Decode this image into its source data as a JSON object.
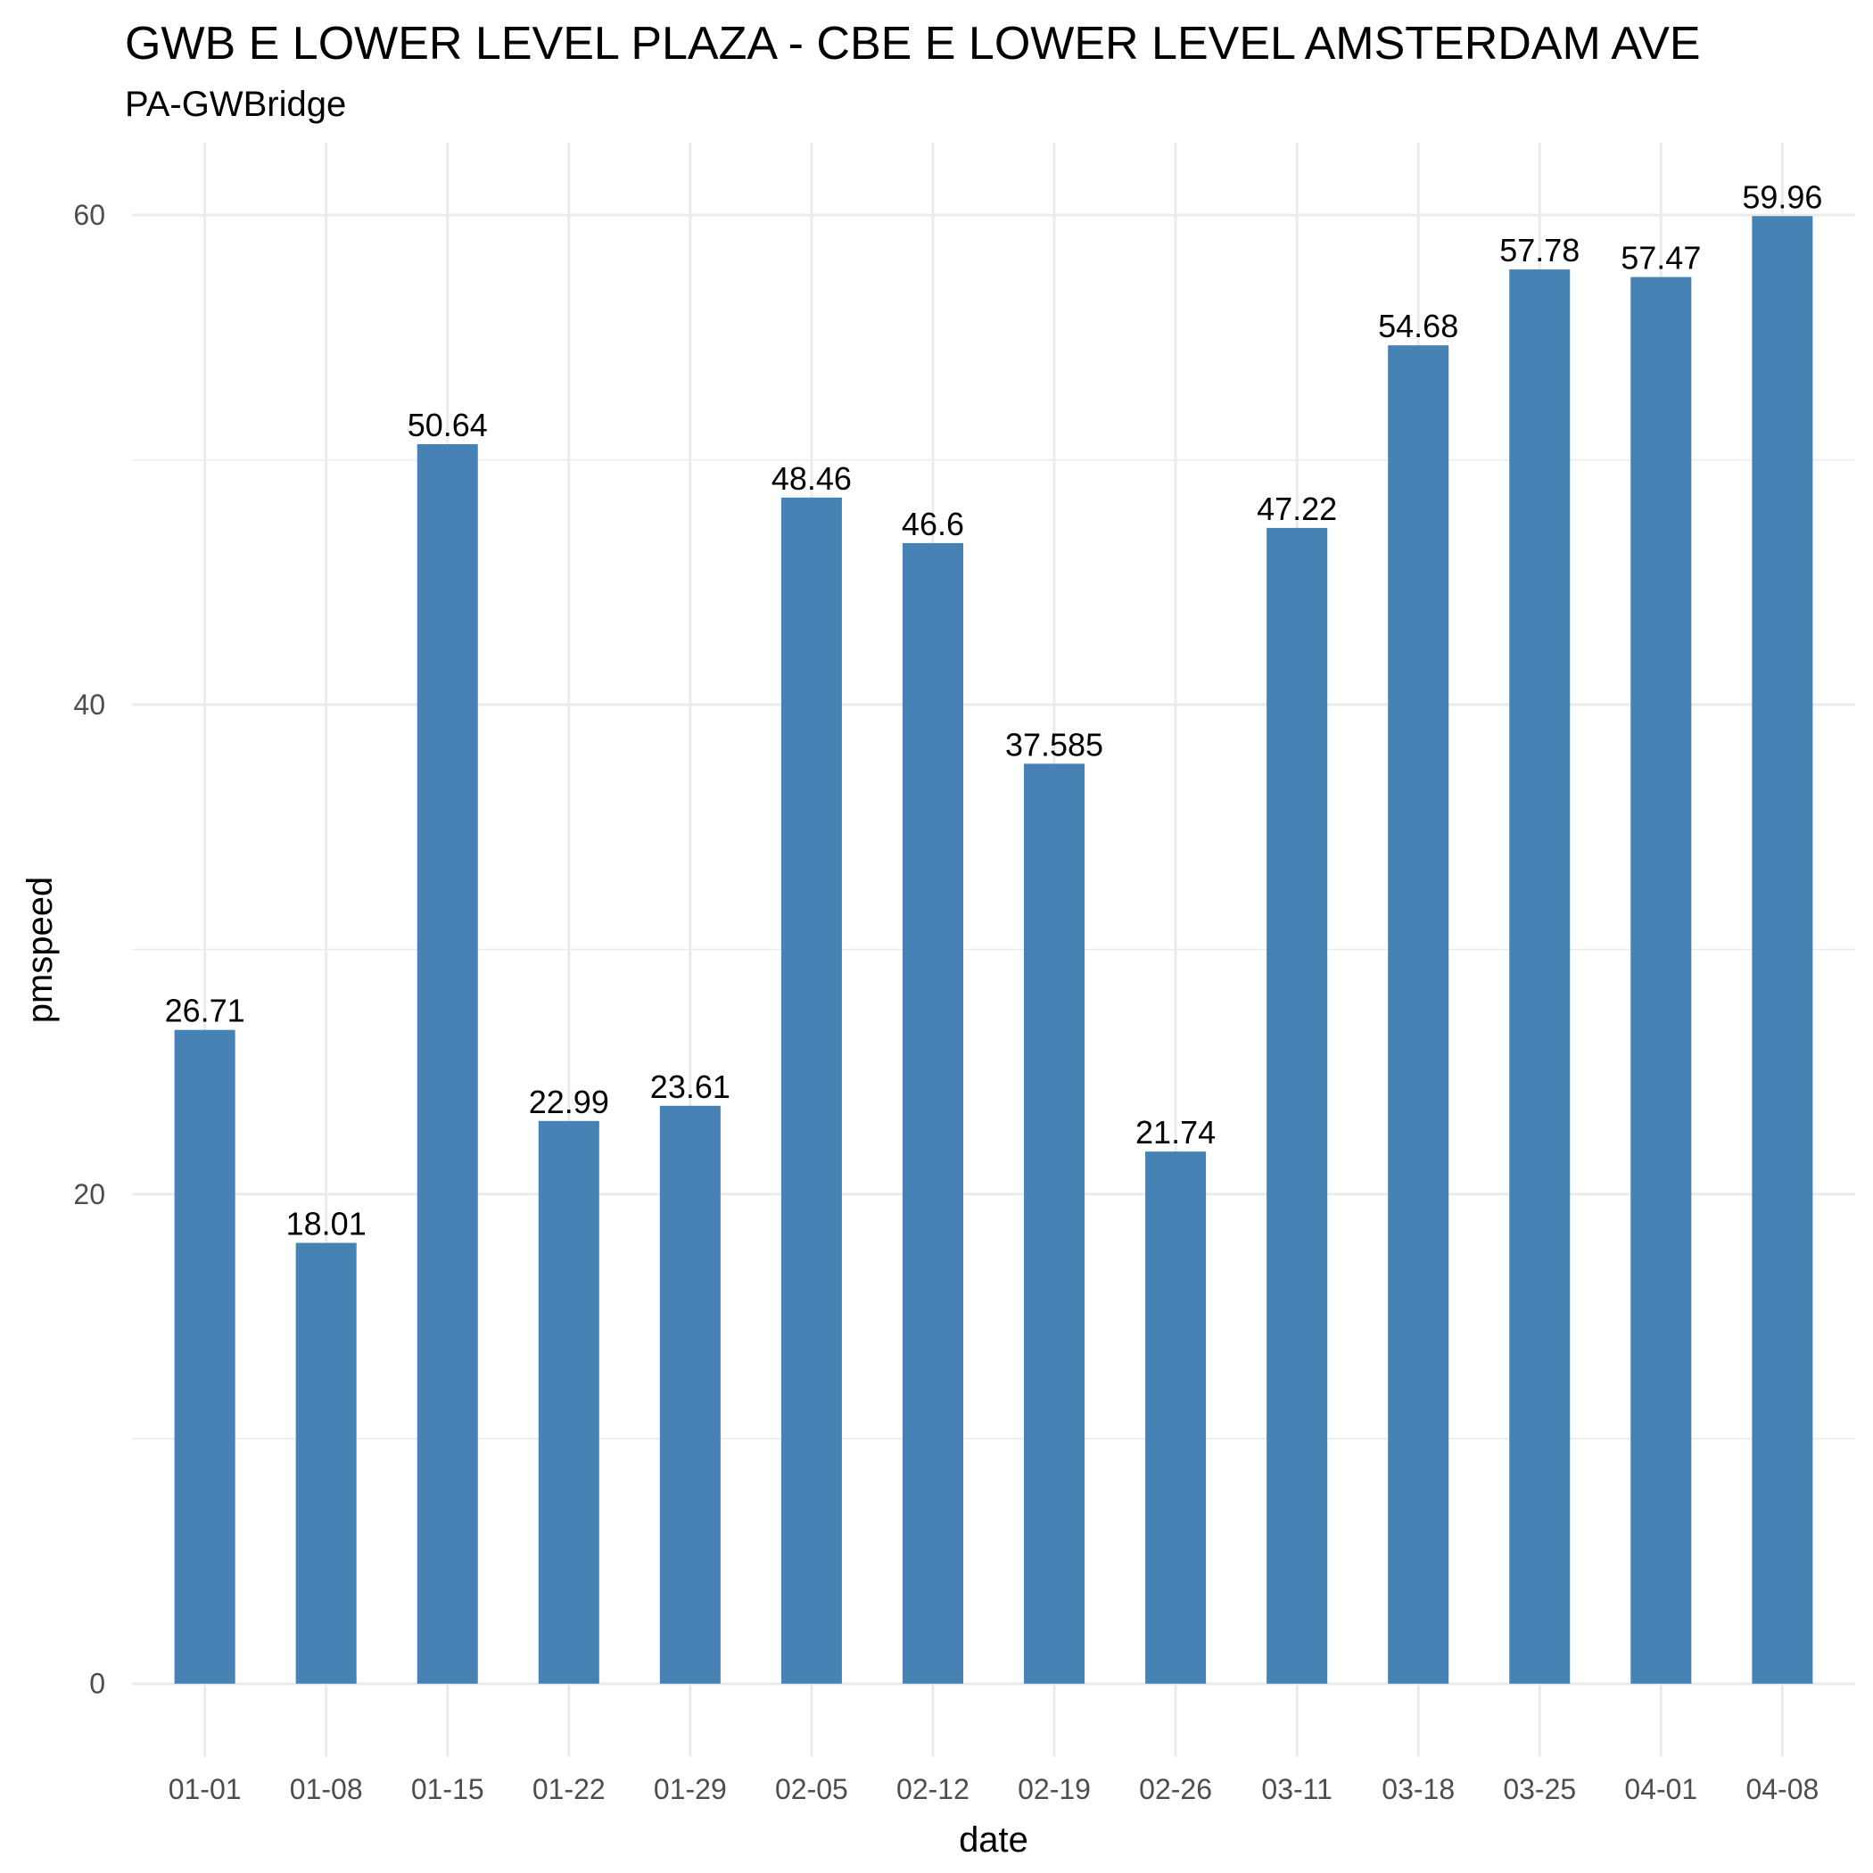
{
  "chart_data": {
    "type": "bar",
    "title": "GWB E LOWER LEVEL PLAZA - CBE E LOWER LEVEL AMSTERDAM AVE",
    "subtitle": "PA-GWBridge",
    "xlabel": "date",
    "ylabel": "pmspeed",
    "categories": [
      "01-01",
      "01-08",
      "01-15",
      "01-22",
      "01-29",
      "02-05",
      "02-12",
      "02-19",
      "02-26",
      "03-11",
      "03-18",
      "03-25",
      "04-01",
      "04-08"
    ],
    "values": [
      26.71,
      18.01,
      50.64,
      22.99,
      23.61,
      48.46,
      46.6,
      37.585,
      21.74,
      47.22,
      54.68,
      57.78,
      57.47,
      59.96
    ],
    "value_labels": [
      "26.71",
      "18.01",
      "50.64",
      "22.99",
      "23.61",
      "48.46",
      "46.6",
      "37.585",
      "21.74",
      "47.22",
      "54.68",
      "57.78",
      "57.47",
      "59.96"
    ],
    "ylim": [
      -2.998,
      62.958
    ],
    "yticks": [
      0,
      20,
      40,
      60
    ],
    "yticks_minor": [
      10,
      30,
      50
    ],
    "grid": true,
    "legend": "none",
    "bar_color": "#4682B4"
  }
}
